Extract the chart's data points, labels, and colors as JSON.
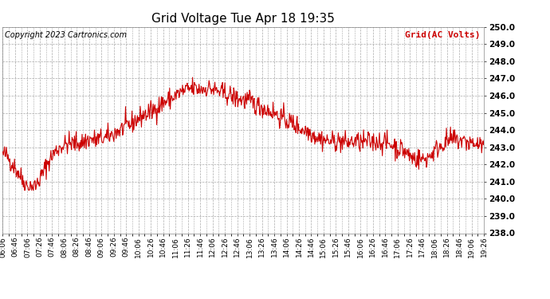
{
  "title": "Grid Voltage Tue Apr 18 19:35",
  "copyright_text": "Copyright 2023 Cartronics.com",
  "legend_label": "Grid(AC Volts)",
  "line_color": "#cc0000",
  "legend_color": "#cc0000",
  "copyright_color": "#000000",
  "bg_color": "#ffffff",
  "plot_bg_color": "#ffffff",
  "grid_color": "#aaaaaa",
  "grid_style": "--",
  "ylim": [
    238.0,
    250.0
  ],
  "ytick_step": 1.0,
  "x_labels": [
    "06:06",
    "06:46",
    "07:06",
    "07:26",
    "07:46",
    "08:06",
    "08:26",
    "08:46",
    "09:06",
    "09:26",
    "09:46",
    "10:06",
    "10:26",
    "10:46",
    "11:06",
    "11:26",
    "11:46",
    "12:06",
    "12:26",
    "12:46",
    "13:06",
    "13:26",
    "13:46",
    "14:06",
    "14:26",
    "14:46",
    "15:06",
    "15:26",
    "15:46",
    "16:06",
    "16:26",
    "16:46",
    "17:06",
    "17:26",
    "17:46",
    "18:06",
    "18:26",
    "18:46",
    "19:06",
    "19:26"
  ],
  "title_fontsize": 11,
  "tick_fontsize": 6.5,
  "ytick_fontsize": 7.5,
  "copyright_fontsize": 7,
  "legend_fontsize": 8,
  "line_width": 0.8
}
